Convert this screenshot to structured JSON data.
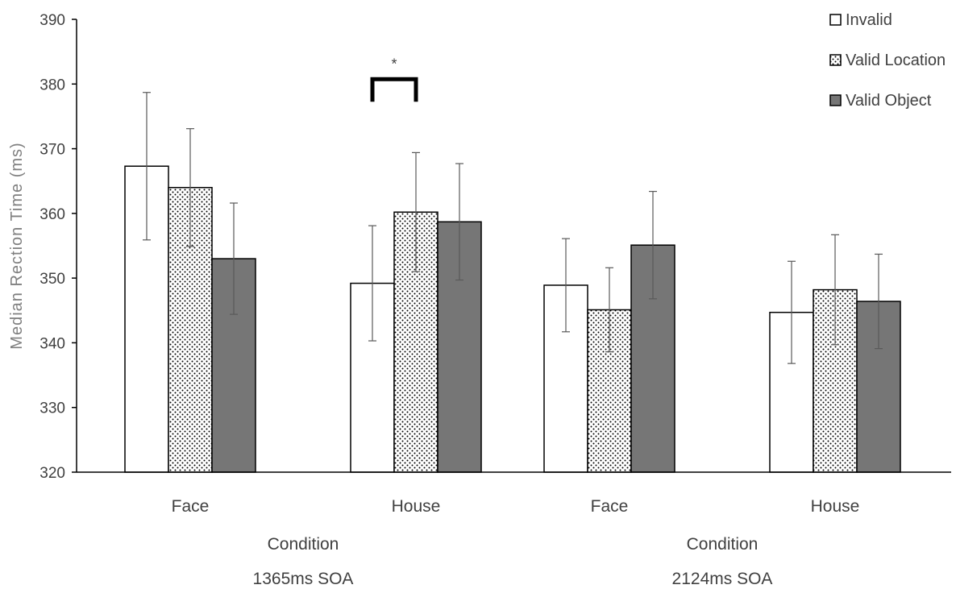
{
  "chart_data": {
    "type": "bar",
    "ylabel": "Median Rection Time (ms)",
    "ylim": [
      320,
      390
    ],
    "yticks": [
      320,
      330,
      340,
      350,
      360,
      370,
      380,
      390
    ],
    "grid": false,
    "legend_position": "top-right",
    "categories": [
      "Face",
      "House",
      "Face",
      "House"
    ],
    "groups": [
      {
        "lines": [
          "Condition",
          "1365ms SOA"
        ]
      },
      {
        "lines": [
          "Condition",
          "2124ms SOA"
        ]
      }
    ],
    "series": [
      {
        "name": "Invalid",
        "fill": "white",
        "values": [
          367.3,
          349.2,
          348.9,
          344.7
        ],
        "error": [
          11.4,
          8.9,
          7.2,
          7.9
        ]
      },
      {
        "name": "Valid Location",
        "fill": "dotted",
        "values": [
          364.0,
          360.2,
          345.1,
          348.2
        ],
        "error": [
          9.1,
          9.2,
          6.5,
          8.5
        ]
      },
      {
        "name": "Valid Object",
        "fill": "gray",
        "values": [
          353.0,
          358.7,
          355.1,
          346.4
        ],
        "error": [
          8.6,
          9.0,
          8.3,
          7.3
        ]
      }
    ],
    "annotations": [
      {
        "text": "*",
        "category_index": 1,
        "between_series": [
          0,
          1
        ],
        "y": 380
      }
    ]
  },
  "colors": {
    "bar_outline": "#000000",
    "invalid_fill": "#ffffff",
    "valid_location_dot": "#000000",
    "valid_object_fill": "#767676",
    "axis": "#000000",
    "error_bar": "#595959"
  }
}
